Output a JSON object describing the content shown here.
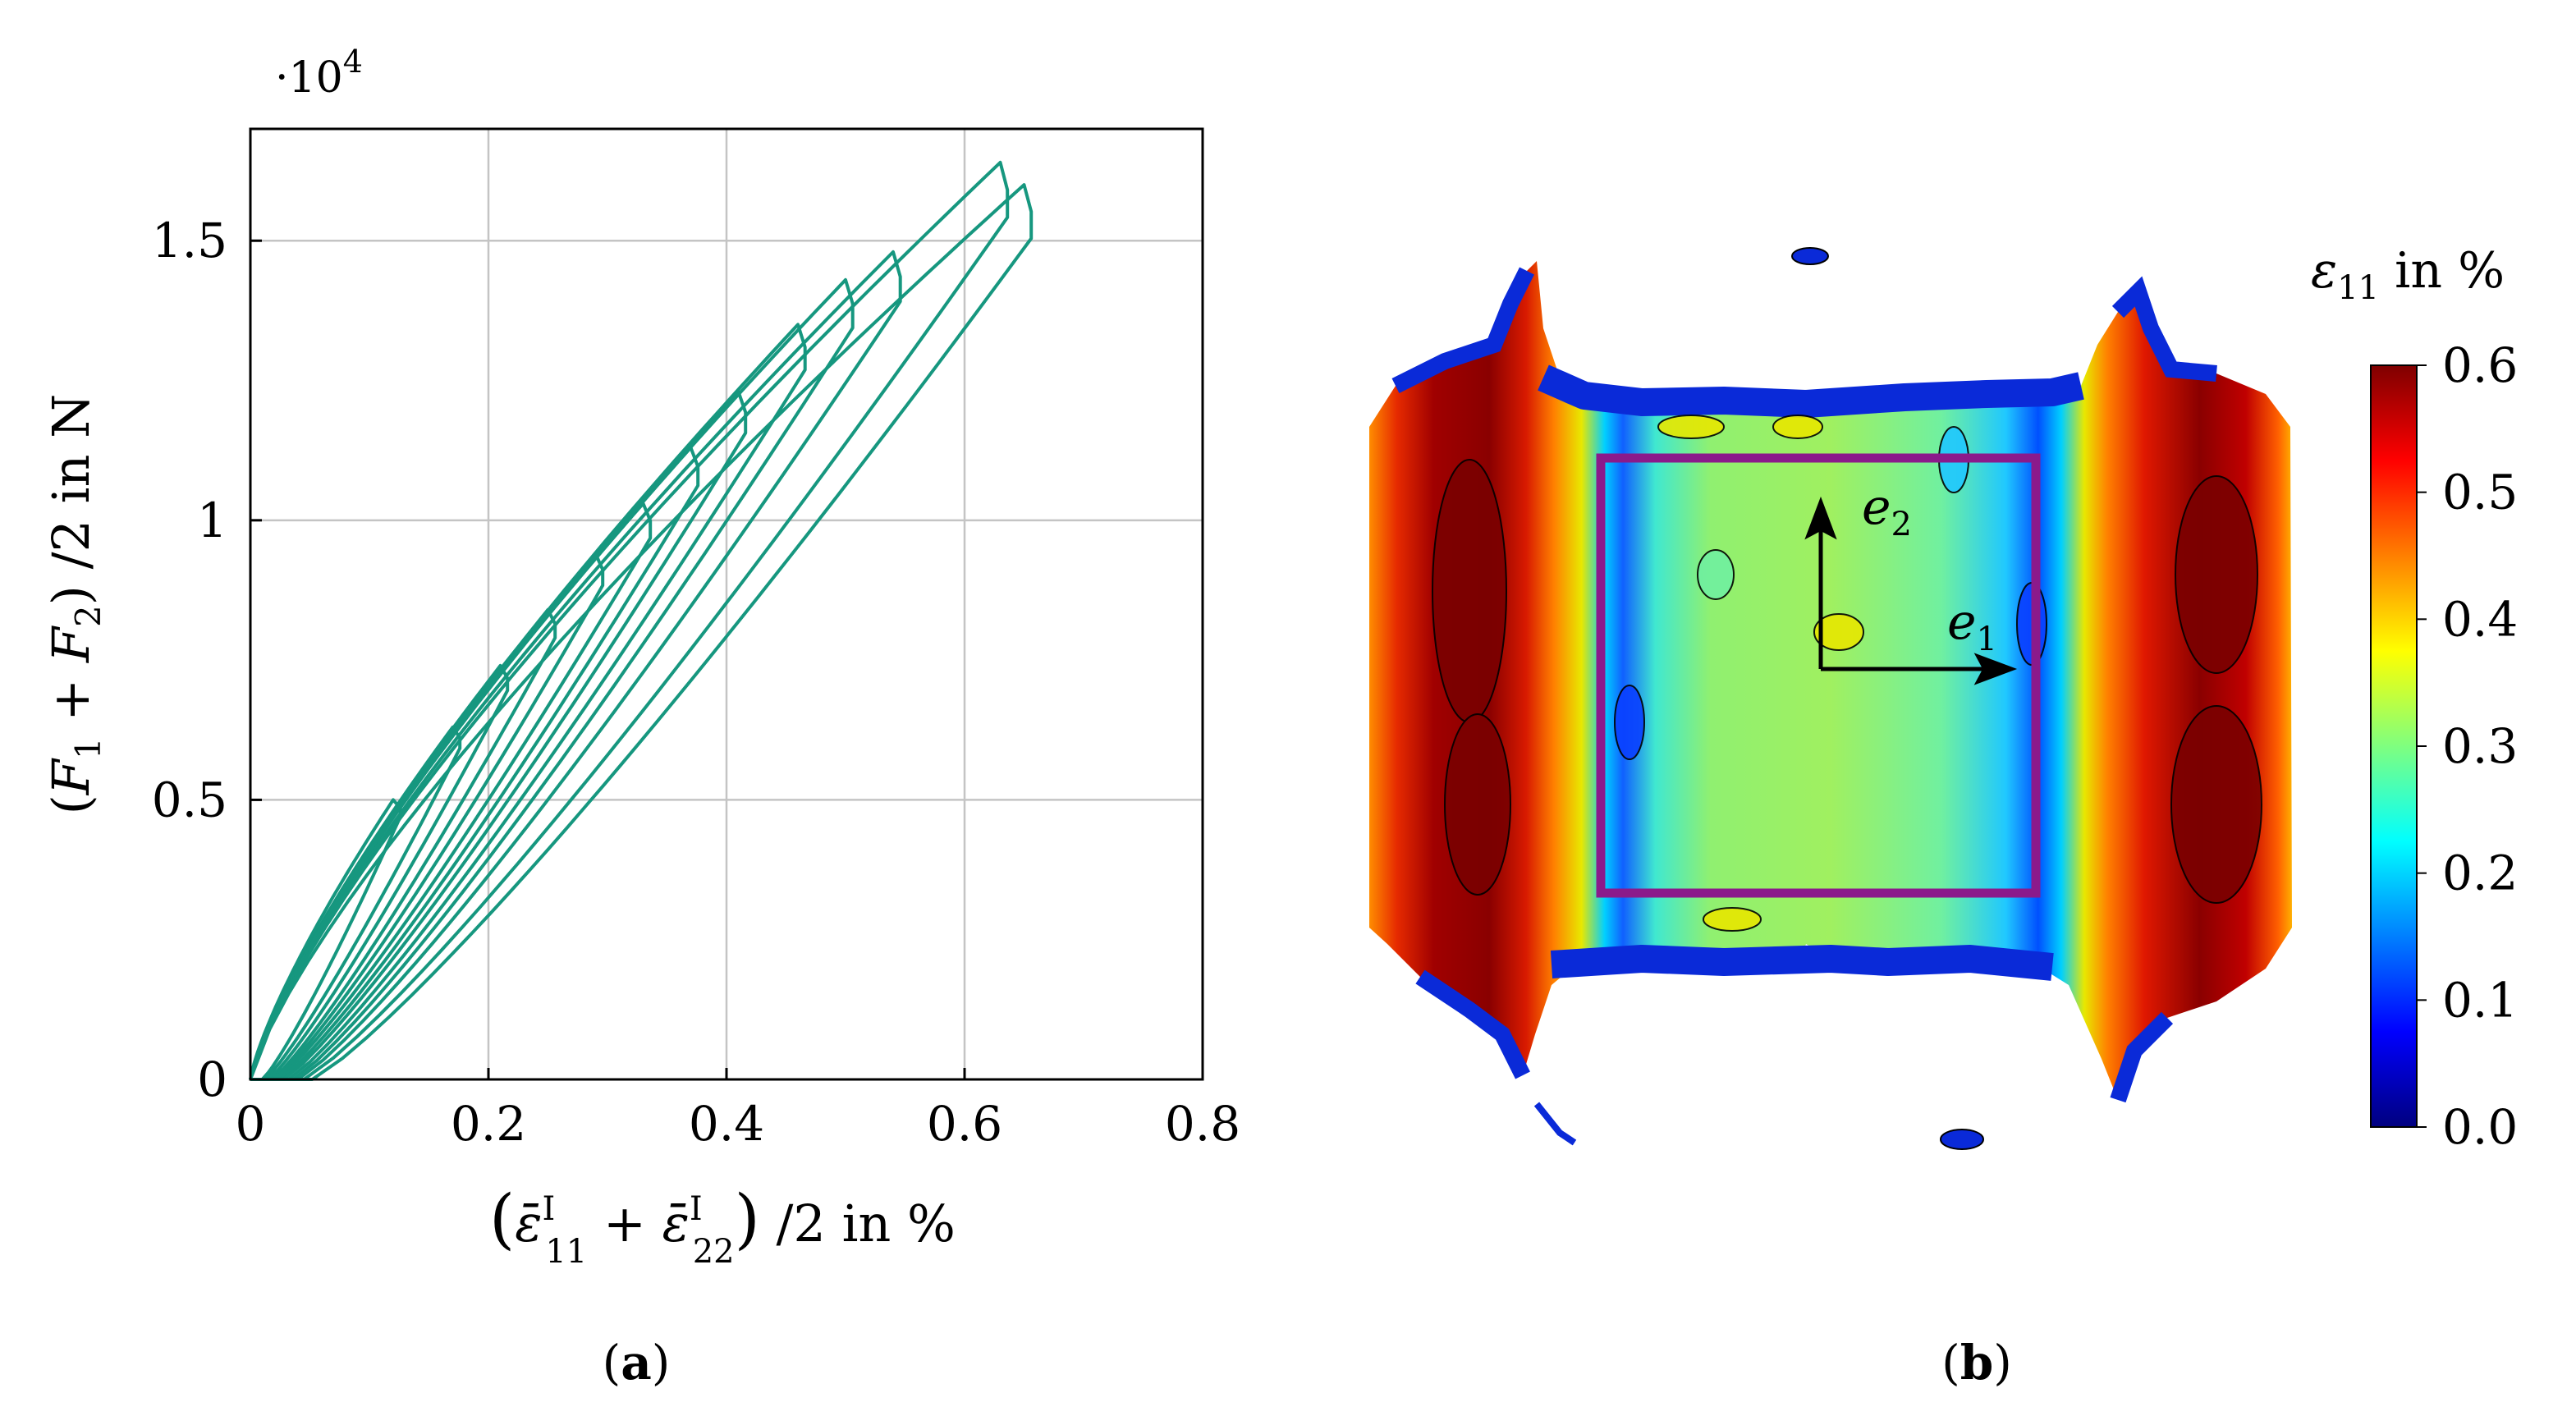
{
  "chart_data": [
    {
      "type": "line",
      "panel_label": "(a)",
      "series_color": "#16977f",
      "ylabel": "(F1 + F2) /2 in N",
      "xlabel": "(ε̄I11 + ε̄I22) /2 in %",
      "y_multiplier": "·10",
      "y_multiplier_exp": "4",
      "xlim": [
        0,
        0.8
      ],
      "ylim": [
        0,
        17000
      ],
      "grid": true,
      "x_ticks": [
        0,
        0.2,
        0.4,
        0.6,
        0.8
      ],
      "x_tick_labels": [
        "0",
        "0.2",
        "0.4",
        "0.6",
        "0.8"
      ],
      "y_ticks": [
        0,
        5000,
        10000,
        15000
      ],
      "y_tick_labels": [
        "0",
        "0.5",
        "1",
        "1.5"
      ],
      "cycles": [
        {
          "peak_x": 0.12,
          "peak_y": 5000,
          "end_x": 0.01
        },
        {
          "peak_x": 0.17,
          "peak_y": 6300,
          "end_x": 0.012
        },
        {
          "peak_x": 0.21,
          "peak_y": 7400,
          "end_x": 0.015
        },
        {
          "peak_x": 0.25,
          "peak_y": 8400,
          "end_x": 0.018
        },
        {
          "peak_x": 0.29,
          "peak_y": 9400,
          "end_x": 0.02
        },
        {
          "peak_x": 0.33,
          "peak_y": 10300,
          "end_x": 0.022
        },
        {
          "peak_x": 0.37,
          "peak_y": 11300,
          "end_x": 0.025
        },
        {
          "peak_x": 0.41,
          "peak_y": 12300,
          "end_x": 0.028
        },
        {
          "peak_x": 0.46,
          "peak_y": 13500,
          "end_x": 0.032
        },
        {
          "peak_x": 0.5,
          "peak_y": 14300,
          "end_x": 0.036
        },
        {
          "peak_x": 0.54,
          "peak_y": 14800,
          "end_x": 0.04
        },
        {
          "peak_x": 0.63,
          "peak_y": 16400,
          "end_x": 0.045
        },
        {
          "peak_x": 0.65,
          "peak_y": 16000,
          "end_x": 0.052
        }
      ]
    },
    {
      "type": "heatmap",
      "panel_label": "(b)",
      "colorbar_label": "ε11 in %",
      "colorbar_range": [
        0,
        0.6
      ],
      "colorbar_ticks": [
        "0.0",
        "0.1",
        "0.2",
        "0.3",
        "0.4",
        "0.5",
        "0.6"
      ],
      "colormap": [
        "#00007f",
        "#0000ff",
        "#007fff",
        "#00ffff",
        "#7fff7f",
        "#ffff00",
        "#ff7f00",
        "#ff0000",
        "#7f0000"
      ],
      "frame_color": "#8b1a8b",
      "axis_labels": {
        "e1": "e",
        "e1_sub": "1",
        "e2": "e",
        "e2_sub": "2"
      }
    }
  ]
}
